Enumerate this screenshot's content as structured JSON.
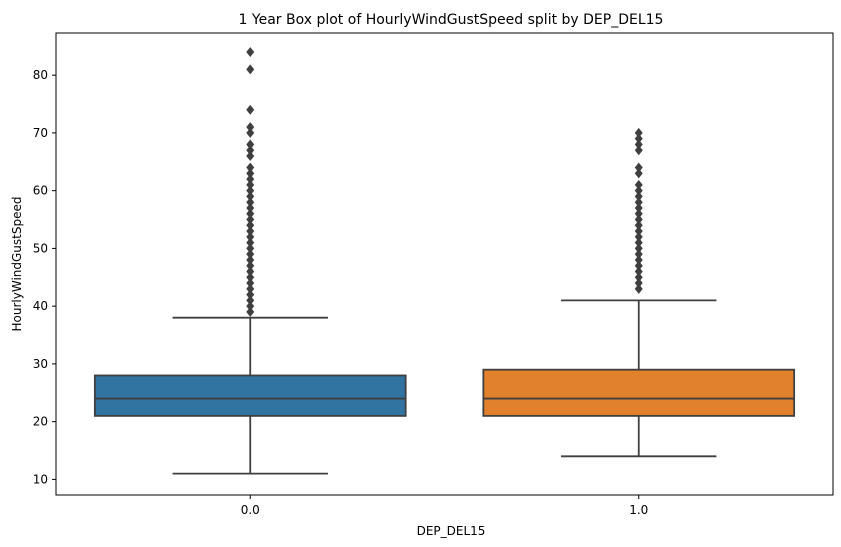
{
  "chart_data": {
    "type": "box",
    "title": "1 Year Box plot of HourlyWindGustSpeed split by DEP_DEL15",
    "xlabel": "DEP_DEL15",
    "ylabel": "HourlyWindGustSpeed",
    "ylim": [
      7.3,
      87.3
    ],
    "yticks": [
      10,
      20,
      30,
      40,
      50,
      60,
      70,
      80
    ],
    "categories": [
      "0.0",
      "1.0"
    ],
    "boxes": [
      {
        "category": "0.0",
        "color": "#3274a1",
        "whisker_low": 11,
        "q1": 21,
        "median": 24,
        "q3": 28,
        "whisker_high": 38,
        "outliers": [
          39,
          40,
          41,
          42,
          43,
          44,
          45,
          46,
          47,
          48,
          49,
          50,
          51,
          52,
          53,
          54,
          55,
          56,
          57,
          58,
          59,
          60,
          61,
          62,
          63,
          64,
          66,
          67,
          68,
          70,
          71,
          74,
          81,
          84
        ]
      },
      {
        "category": "1.0",
        "color": "#e1812c",
        "whisker_low": 14,
        "q1": 21,
        "median": 24,
        "q3": 29,
        "whisker_high": 41,
        "outliers": [
          43,
          44,
          45,
          46,
          47,
          48,
          49,
          50,
          51,
          52,
          53,
          54,
          55,
          56,
          57,
          58,
          59,
          60,
          61,
          63,
          64,
          67,
          68,
          69,
          70
        ]
      }
    ],
    "grid": false,
    "legend": false
  }
}
